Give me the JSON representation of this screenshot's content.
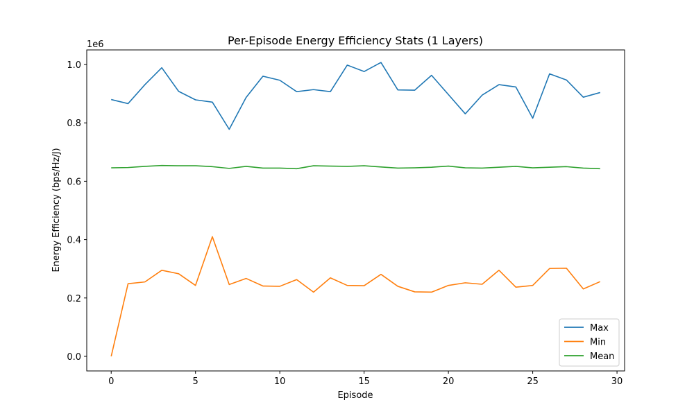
{
  "chart_data": {
    "type": "line",
    "title": "Per-Episode Energy Efficiency Stats (1 Layers)",
    "xlabel": "Episode",
    "ylabel": "Energy Efficiency (bps/Hz/J)",
    "y_offset_label": "1e6",
    "xlim": [
      -1.45,
      30.45
    ],
    "ylim": [
      -0.05,
      1.05
    ],
    "x_ticks": [
      0,
      5,
      10,
      15,
      20,
      25,
      30
    ],
    "x_tick_labels": [
      "0",
      "5",
      "10",
      "15",
      "20",
      "25",
      "30"
    ],
    "y_ticks": [
      0.0,
      0.2,
      0.4,
      0.6,
      0.8,
      1.0
    ],
    "y_tick_labels": [
      "0.0",
      "0.2",
      "0.4",
      "0.6",
      "0.8",
      "1.0"
    ],
    "grid": false,
    "legend_position": "lower-right",
    "x": [
      0,
      1,
      2,
      3,
      4,
      5,
      6,
      7,
      8,
      9,
      10,
      11,
      12,
      13,
      14,
      15,
      16,
      17,
      18,
      19,
      20,
      21,
      22,
      23,
      24,
      25,
      26,
      27,
      28,
      29
    ],
    "series": [
      {
        "name": "Max",
        "color": "#1f77b4",
        "values": [
          0.88,
          0.866,
          0.931,
          0.989,
          0.908,
          0.879,
          0.871,
          0.778,
          0.887,
          0.96,
          0.946,
          0.907,
          0.914,
          0.907,
          0.998,
          0.976,
          1.007,
          0.913,
          0.912,
          0.963,
          0.897,
          0.831,
          0.895,
          0.931,
          0.923,
          0.816,
          0.968,
          0.947,
          0.888,
          0.904
        ]
      },
      {
        "name": "Min",
        "color": "#ff7f0e",
        "values": [
          0.0,
          0.249,
          0.255,
          0.295,
          0.283,
          0.243,
          0.41,
          0.246,
          0.267,
          0.241,
          0.24,
          0.263,
          0.22,
          0.269,
          0.243,
          0.242,
          0.281,
          0.24,
          0.221,
          0.22,
          0.243,
          0.252,
          0.247,
          0.295,
          0.237,
          0.243,
          0.301,
          0.302,
          0.231,
          0.256
        ]
      },
      {
        "name": "Mean",
        "color": "#2ca02c",
        "values": [
          0.646,
          0.647,
          0.651,
          0.654,
          0.653,
          0.653,
          0.65,
          0.644,
          0.651,
          0.645,
          0.645,
          0.643,
          0.653,
          0.652,
          0.651,
          0.653,
          0.649,
          0.645,
          0.646,
          0.648,
          0.652,
          0.646,
          0.645,
          0.648,
          0.651,
          0.646,
          0.648,
          0.65,
          0.645,
          0.643
        ]
      }
    ]
  }
}
